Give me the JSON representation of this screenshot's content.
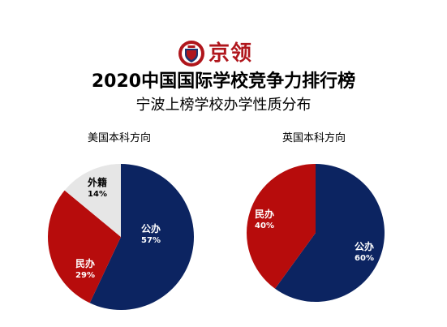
{
  "logo": {
    "text": "京领"
  },
  "header": {
    "title": "2020中国国际学校竞争力排行榜",
    "subtitle": "宁波上榜学校办学性质分布"
  },
  "colors": {
    "public": "#0c2461",
    "private": "#b70c0c",
    "foreign": "#e6e6e6",
    "brand": "#b0161c"
  },
  "chart_data": [
    {
      "type": "pie",
      "title": "美国本科方向",
      "slices": [
        {
          "label": "公办",
          "value": 57,
          "display": "57%",
          "color": "#0c2461"
        },
        {
          "label": "民办",
          "value": 29,
          "display": "29%",
          "color": "#b70c0c"
        },
        {
          "label": "外籍",
          "value": 14,
          "display": "14%",
          "color": "#e6e6e6"
        }
      ]
    },
    {
      "type": "pie",
      "title": "英国本科方向",
      "slices": [
        {
          "label": "公办",
          "value": 60,
          "display": "60%",
          "color": "#0c2461"
        },
        {
          "label": "民办",
          "value": 40,
          "display": "40%",
          "color": "#b70c0c"
        }
      ]
    }
  ]
}
